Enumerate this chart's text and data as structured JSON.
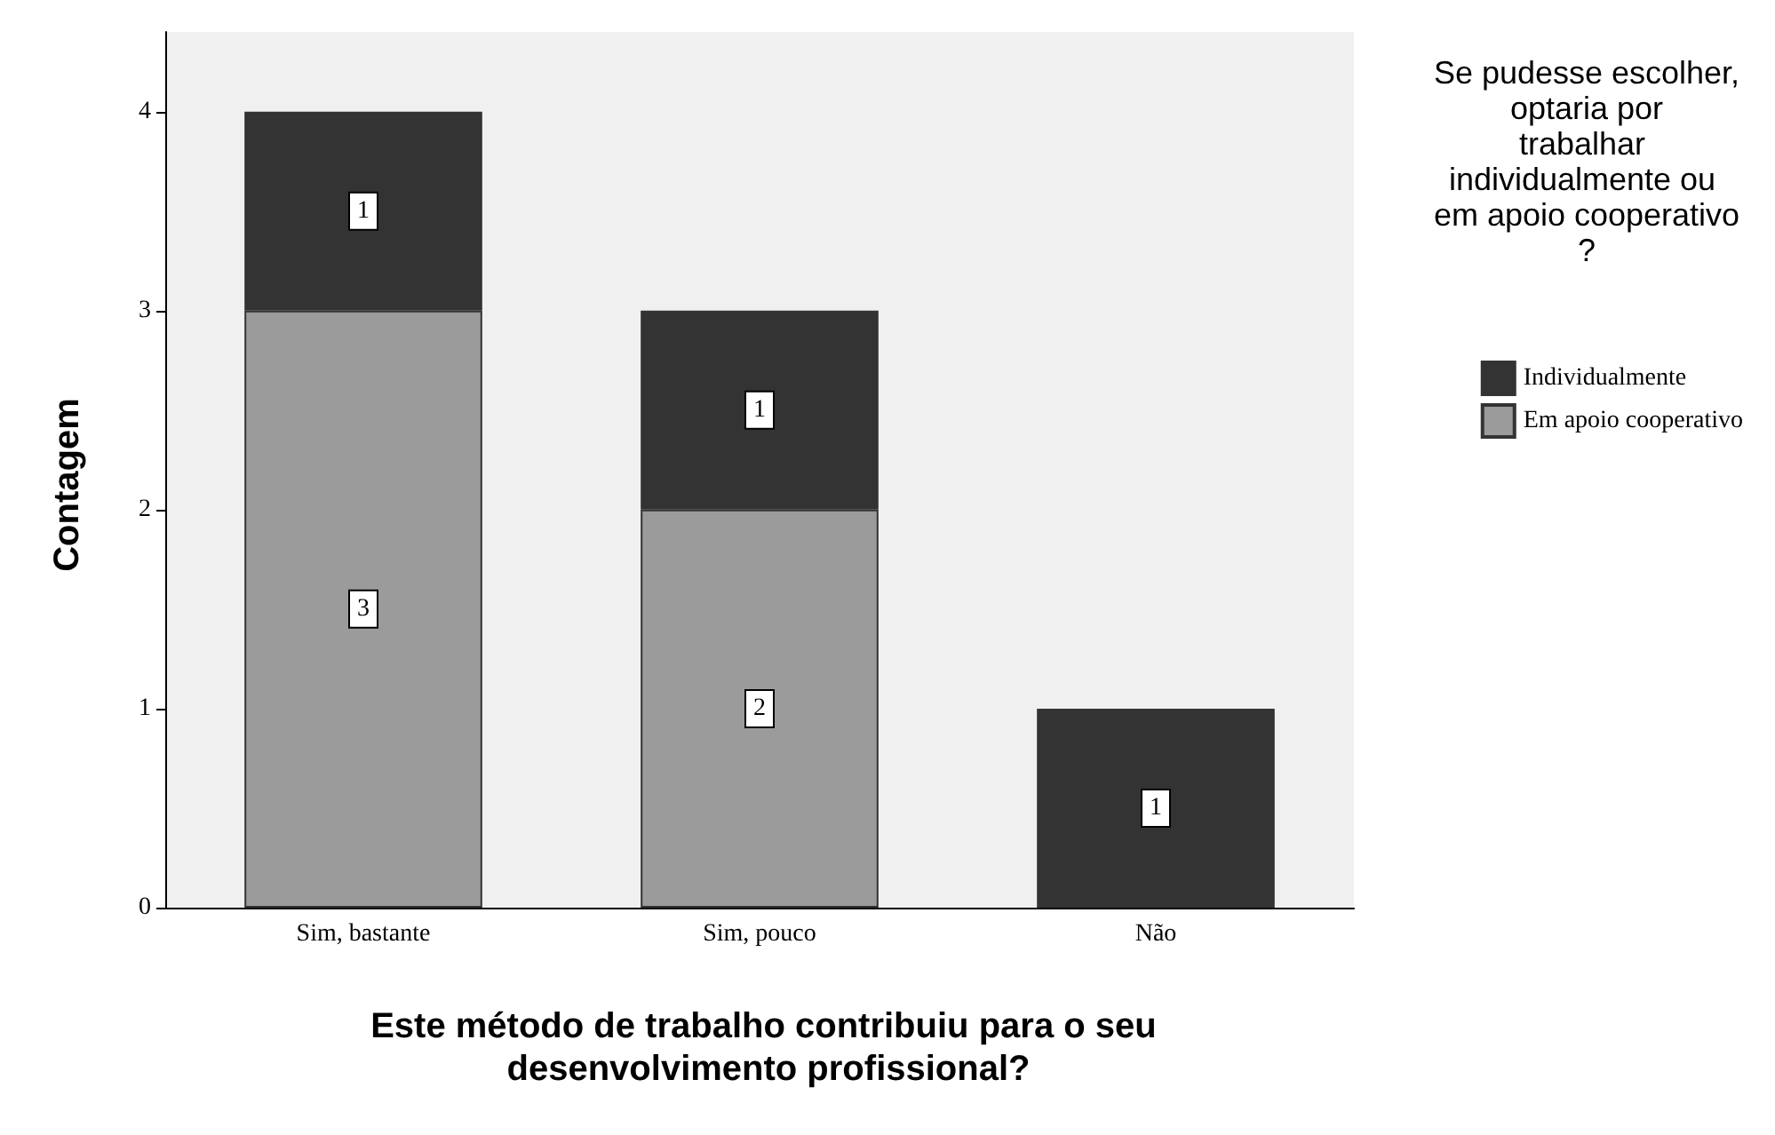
{
  "chart_data": {
    "type": "bar",
    "stacked": true,
    "categories": [
      "Sim, bastante",
      "Sim, pouco",
      "Não"
    ],
    "series": [
      {
        "name": "Em apoio cooperativo",
        "color": "#9b9b9b",
        "values": [
          3,
          2,
          null
        ]
      },
      {
        "name": "Individualmente",
        "color": "#333333",
        "values": [
          1,
          1,
          1
        ]
      }
    ],
    "xlabel": "Este método de trabalho contribuiu para o seu desenvolvimento profissional?",
    "ylabel": "Contagem",
    "legend_title": "Se pudesse escolher, optaria por trabalhar individualmente ou em apoio cooperativo?",
    "legend": "right",
    "ylim": [
      0,
      4.4
    ],
    "yticks": [
      0,
      1,
      2,
      3,
      4
    ],
    "grid": false,
    "data_labels": true
  }
}
